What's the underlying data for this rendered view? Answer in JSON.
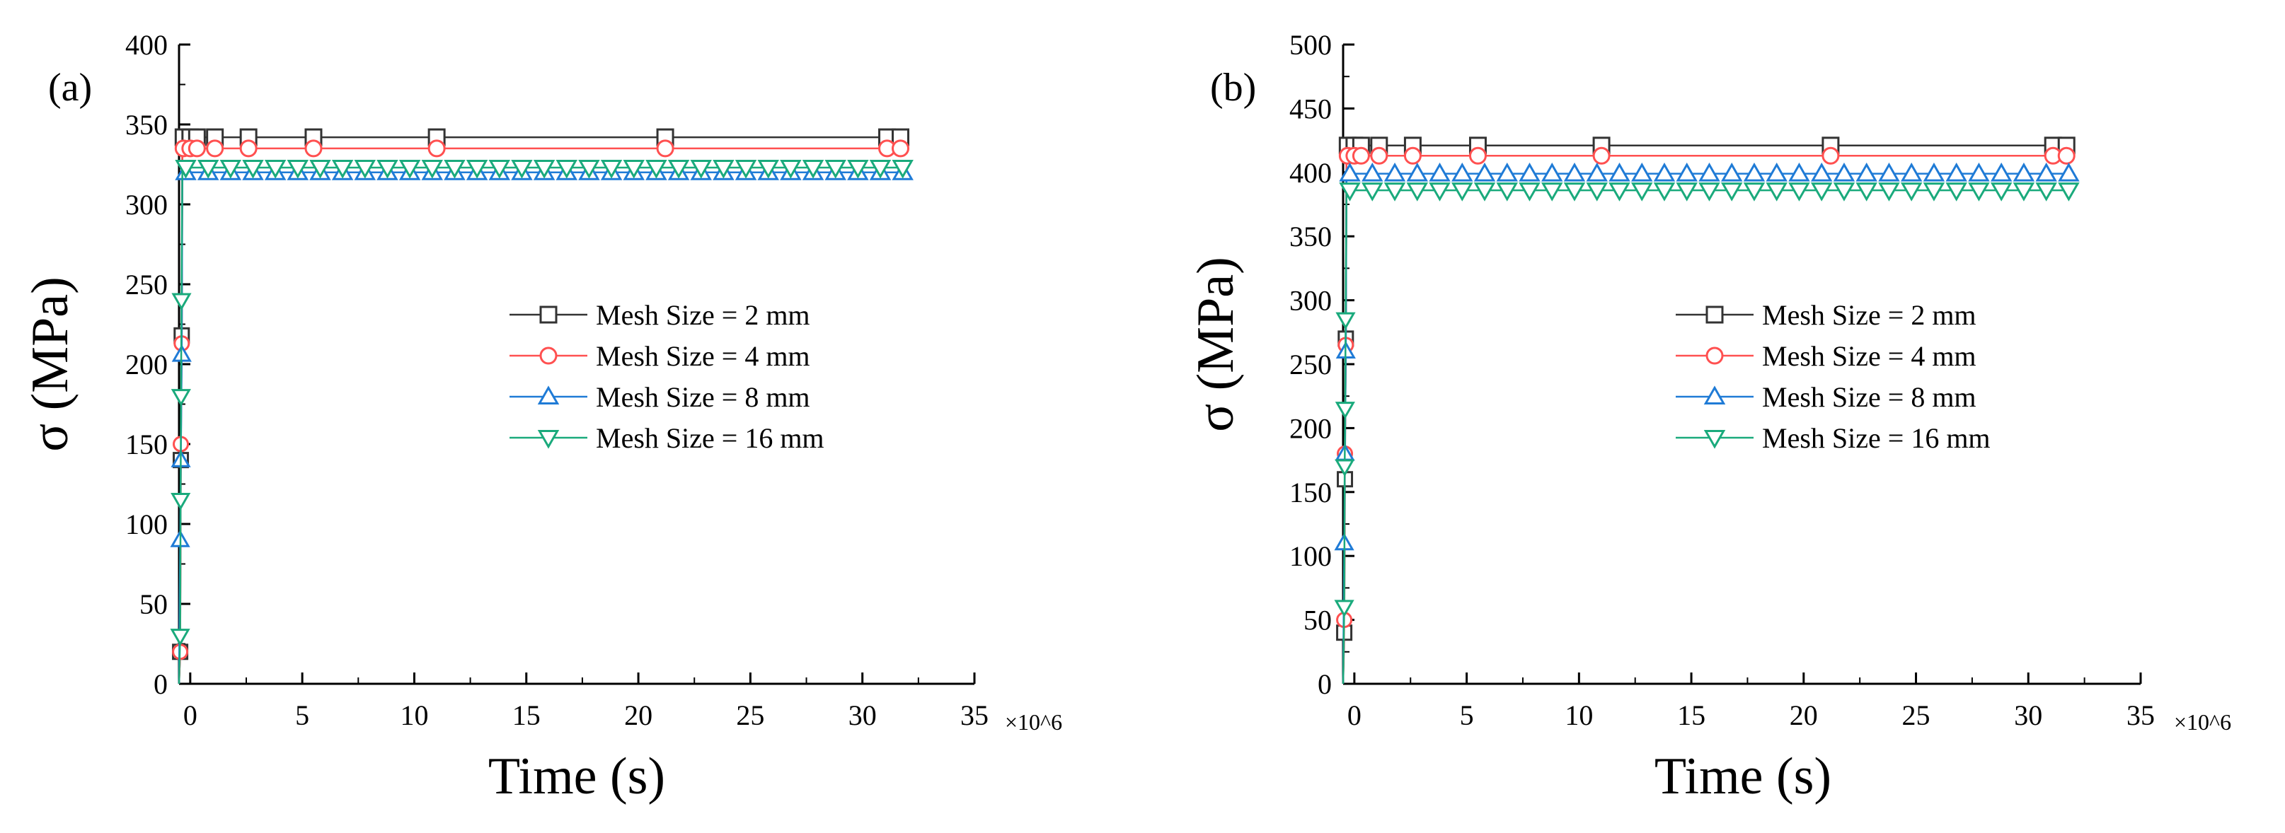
{
  "chart_data": [
    {
      "type": "line",
      "panel_label": "(a)",
      "xlabel": "Time (s)",
      "ylabel": "σ (MPa)",
      "x_multiplier": "×10^6",
      "xlim": [
        -0.5,
        35
      ],
      "ylim": [
        0,
        400
      ],
      "x_ticks": [
        0,
        5,
        10,
        15,
        20,
        25,
        30,
        35
      ],
      "y_ticks": [
        0,
        50,
        100,
        150,
        200,
        250,
        300,
        350,
        400
      ],
      "legend_position": "center-right",
      "series": [
        {
          "name": "Mesh Size = 2 mm",
          "color": "#333333",
          "marker": "square",
          "plateau": 342,
          "transient_x": [
            -0.45,
            -0.42,
            -0.38
          ],
          "transient_y": [
            20,
            140,
            218
          ],
          "plateau_x": [
            -0.3,
            0.0,
            0.3,
            1.1,
            2.6,
            5.5,
            11.0,
            21.2,
            31.1,
            31.7
          ]
        },
        {
          "name": "Mesh Size = 4 mm",
          "color": "#ff5050",
          "marker": "circle",
          "plateau": 335,
          "transient_x": [
            -0.45,
            -0.42,
            -0.38
          ],
          "transient_y": [
            20,
            150,
            213
          ],
          "plateau_x": [
            -0.3,
            0.0,
            0.3,
            1.1,
            2.6,
            5.5,
            11.0,
            21.2,
            31.1,
            31.7
          ]
        },
        {
          "name": "Mesh Size = 8 mm",
          "color": "#1f7bd6",
          "marker": "triangle-up",
          "plateau": 320,
          "transient_x": [
            -0.45,
            -0.42,
            -0.38
          ],
          "transient_y": [
            90,
            140,
            206
          ],
          "plateau_x_step": 1.0,
          "plateau_x_range": [
            -0.2,
            31.8
          ]
        },
        {
          "name": "Mesh Size = 16 mm",
          "color": "#1aaa7c",
          "marker": "triangle-down",
          "plateau": 323,
          "transient_x": [
            -0.45,
            -0.43,
            -0.41,
            -0.39
          ],
          "transient_y": [
            30,
            115,
            180,
            240
          ],
          "plateau_x_step": 1.0,
          "plateau_x_range": [
            -0.2,
            31.8
          ]
        }
      ]
    },
    {
      "type": "line",
      "panel_label": "(b)",
      "xlabel": "Time (s)",
      "ylabel": "σ (MPa)",
      "x_multiplier": "×10^6",
      "xlim": [
        -0.5,
        35
      ],
      "ylim": [
        0,
        500
      ],
      "x_ticks": [
        0,
        5,
        10,
        15,
        20,
        25,
        30,
        35
      ],
      "y_ticks": [
        0,
        50,
        100,
        150,
        200,
        250,
        300,
        350,
        400,
        450,
        500
      ],
      "legend_position": "center-right",
      "series": [
        {
          "name": "Mesh Size = 2 mm",
          "color": "#333333",
          "marker": "square",
          "plateau": 421,
          "transient_x": [
            -0.45,
            -0.42,
            -0.38
          ],
          "transient_y": [
            40,
            160,
            270
          ],
          "plateau_x": [
            -0.3,
            0.0,
            0.3,
            1.1,
            2.6,
            5.5,
            11.0,
            21.2,
            31.1,
            31.7
          ]
        },
        {
          "name": "Mesh Size = 4 mm",
          "color": "#ff5050",
          "marker": "circle",
          "plateau": 413,
          "transient_x": [
            -0.45,
            -0.42,
            -0.38
          ],
          "transient_y": [
            50,
            180,
            265
          ],
          "plateau_x": [
            -0.3,
            0.0,
            0.3,
            1.1,
            2.6,
            5.5,
            11.0,
            21.2,
            31.1,
            31.7
          ]
        },
        {
          "name": "Mesh Size = 8 mm",
          "color": "#1f7bd6",
          "marker": "triangle-up",
          "plateau": 399,
          "transient_x": [
            -0.45,
            -0.42,
            -0.38
          ],
          "transient_y": [
            110,
            180,
            260
          ],
          "plateau_x_step": 1.0,
          "plateau_x_range": [
            -0.2,
            31.8
          ]
        },
        {
          "name": "Mesh Size = 16 mm",
          "color": "#1aaa7c",
          "marker": "triangle-down",
          "plateau": 386,
          "transient_x": [
            -0.45,
            -0.43,
            -0.41,
            -0.39
          ],
          "transient_y": [
            60,
            170,
            215,
            285
          ],
          "plateau_x_step": 1.0,
          "plateau_x_range": [
            -0.2,
            31.8
          ]
        }
      ]
    }
  ]
}
